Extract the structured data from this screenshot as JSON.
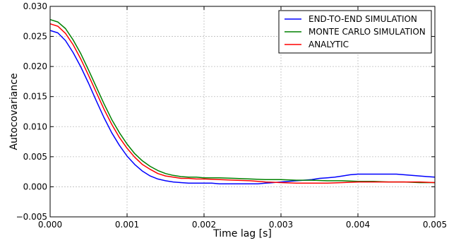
{
  "chart_data": {
    "type": "line",
    "xlabel": "Time lag [s]",
    "ylabel": "Autocovariance",
    "xlim": [
      0.0,
      0.005
    ],
    "ylim": [
      -0.005,
      0.03
    ],
    "x_ticks": [
      "0.000",
      "0.001",
      "0.002",
      "0.003",
      "0.004",
      "0.005"
    ],
    "y_ticks": [
      "−0.005",
      "0.000",
      "0.005",
      "0.010",
      "0.015",
      "0.020",
      "0.025",
      "0.030"
    ],
    "grid": true,
    "legend_position": "top-right",
    "series": [
      {
        "name": "END-TO-END SIMULATION",
        "color": "#0000ff",
        "x": [
          0,
          0.0001,
          0.0002,
          0.0003,
          0.0004,
          0.0005,
          0.0006,
          0.0007,
          0.0008,
          0.0009,
          0.001,
          0.0011,
          0.0012,
          0.0013,
          0.0014,
          0.0015,
          0.0016,
          0.0017,
          0.0018,
          0.0019,
          0.002,
          0.0021,
          0.0022,
          0.0023,
          0.0024,
          0.0025,
          0.0026,
          0.0027,
          0.0028,
          0.0029,
          0.003,
          0.0031,
          0.0032,
          0.0033,
          0.0034,
          0.0035,
          0.0036,
          0.0037,
          0.0038,
          0.0039,
          0.004,
          0.0041,
          0.0042,
          0.0043,
          0.0044,
          0.0045,
          0.0046,
          0.0047,
          0.0048,
          0.0049,
          0.005
        ],
        "values": [
          0.026,
          0.0256,
          0.0243,
          0.0223,
          0.0199,
          0.0172,
          0.0143,
          0.0115,
          0.009,
          0.0069,
          0.0051,
          0.0037,
          0.0026,
          0.0018,
          0.0013,
          0.001,
          0.0008,
          0.0007,
          0.0006,
          0.0006,
          0.0006,
          0.0006,
          0.0005,
          0.0005,
          0.0005,
          0.0005,
          0.0005,
          0.0005,
          0.0006,
          0.0007,
          0.0008,
          0.0009,
          0.001,
          0.0011,
          0.0012,
          0.0014,
          0.0015,
          0.0016,
          0.0018,
          0.002,
          0.0021,
          0.0021,
          0.0021,
          0.0021,
          0.0021,
          0.0021,
          0.002,
          0.0019,
          0.0018,
          0.0017,
          0.0016
        ]
      },
      {
        "name": "MONTE CARLO SIMULATION",
        "color": "#008000",
        "x": [
          0,
          0.0001,
          0.0002,
          0.0003,
          0.0004,
          0.0005,
          0.0006,
          0.0007,
          0.0008,
          0.0009,
          0.001,
          0.0011,
          0.0012,
          0.0013,
          0.0014,
          0.0015,
          0.0016,
          0.0017,
          0.0018,
          0.0019,
          0.002,
          0.0022,
          0.0024,
          0.0026,
          0.0028,
          0.003,
          0.0032,
          0.0034,
          0.0036,
          0.0038,
          0.004,
          0.0042,
          0.0044,
          0.0046,
          0.0048,
          0.005
        ],
        "values": [
          0.0278,
          0.0274,
          0.0263,
          0.0244,
          0.0221,
          0.0194,
          0.0166,
          0.0138,
          0.0112,
          0.009,
          0.0071,
          0.0055,
          0.0043,
          0.0034,
          0.0027,
          0.0022,
          0.0019,
          0.0017,
          0.0016,
          0.0016,
          0.0015,
          0.0015,
          0.0014,
          0.0013,
          0.0012,
          0.0012,
          0.0011,
          0.0011,
          0.001,
          0.001,
          0.0009,
          0.0009,
          0.0008,
          0.0008,
          0.0007,
          0.0007
        ]
      },
      {
        "name": "ANALYTIC",
        "color": "#ff0000",
        "x": [
          0,
          0.0001,
          0.0002,
          0.0003,
          0.0004,
          0.0005,
          0.0006,
          0.0007,
          0.0008,
          0.0009,
          0.001,
          0.0011,
          0.0012,
          0.0013,
          0.0014,
          0.0015,
          0.0016,
          0.0017,
          0.0018,
          0.0019,
          0.002,
          0.0022,
          0.0024,
          0.0026,
          0.0028,
          0.003,
          0.0032,
          0.0034,
          0.0036,
          0.0038,
          0.004,
          0.0042,
          0.0044,
          0.0046,
          0.0048,
          0.005
        ],
        "values": [
          0.0271,
          0.0267,
          0.0255,
          0.0236,
          0.0212,
          0.0185,
          0.0157,
          0.0129,
          0.0104,
          0.0082,
          0.0064,
          0.0049,
          0.0037,
          0.0029,
          0.0022,
          0.0018,
          0.0016,
          0.0014,
          0.0014,
          0.0013,
          0.0013,
          0.0012,
          0.0011,
          0.001,
          0.0008,
          0.0007,
          0.0006,
          0.0006,
          0.0006,
          0.0007,
          0.0008,
          0.0008,
          0.0008,
          0.0008,
          0.0008,
          0.0007
        ]
      }
    ]
  }
}
